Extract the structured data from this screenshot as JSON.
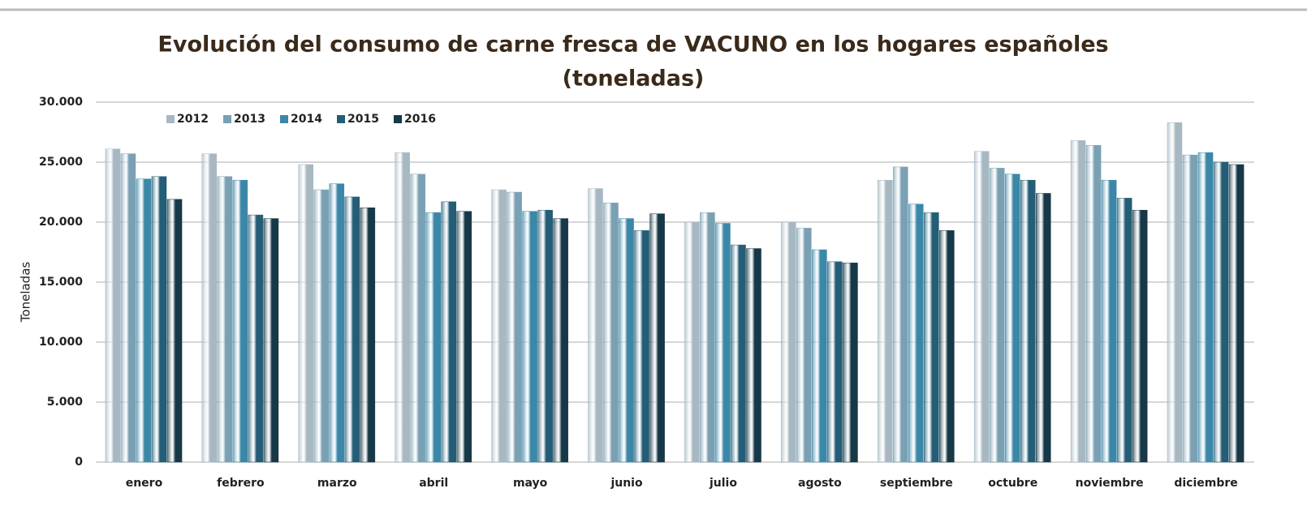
{
  "chart_data": {
    "type": "bar",
    "title": "Evolución del consumo de carne fresca de VACUNO en los hogares españoles",
    "subtitle": "(toneladas)",
    "y_label": "Toneladas",
    "categories": [
      "enero",
      "febrero",
      "marzo",
      "abril",
      "mayo",
      "junio",
      "julio",
      "agosto",
      "septiembre",
      "octubre",
      "noviembre",
      "diciembre"
    ],
    "series": [
      {
        "name": "2012",
        "color": "#a7b8c2",
        "values": [
          26100,
          25700,
          24800,
          25800,
          22700,
          22800,
          20000,
          20000,
          23500,
          25900,
          26800,
          28300
        ]
      },
      {
        "name": "2013",
        "color": "#7aa0b3",
        "values": [
          25700,
          23800,
          22700,
          24000,
          22500,
          21600,
          20800,
          19500,
          24600,
          24500,
          26400,
          25600
        ]
      },
      {
        "name": "2014",
        "color": "#3b87a8",
        "values": [
          23600,
          23500,
          23200,
          20800,
          20900,
          20300,
          19900,
          17700,
          21500,
          24000,
          23500,
          25800
        ]
      },
      {
        "name": "2015",
        "color": "#235d76",
        "values": [
          23800,
          20600,
          22100,
          21700,
          21000,
          19300,
          18100,
          16700,
          20800,
          23500,
          22000,
          25000
        ]
      },
      {
        "name": "2016",
        "color": "#163847",
        "values": [
          21900,
          20300,
          21200,
          20900,
          20300,
          20700,
          17800,
          16600,
          19300,
          22400,
          21000,
          24800
        ]
      }
    ],
    "ylim": [
      0,
      30000
    ],
    "yticks": [
      0,
      {
        "value": 5000,
        "label": "5.000"
      },
      {
        "value": 10000,
        "label": "10.000"
      },
      {
        "value": 15000,
        "label": "15.000"
      },
      {
        "value": 20000,
        "label": "20.000"
      },
      {
        "value": 25000,
        "label": "25.000"
      },
      {
        "value": 30000,
        "label": "30.000"
      }
    ],
    "grid": true,
    "legend": "top-left"
  }
}
